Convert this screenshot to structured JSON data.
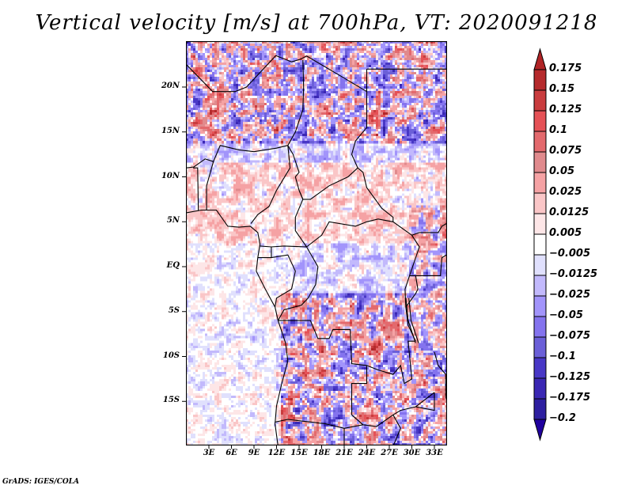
{
  "title": "Vertical velocity [m/s] at 700hPa, VT: 2020091218",
  "credit": "GrADS: IGES/COLA",
  "map": {
    "variable": "Vertical velocity",
    "units": "m/s",
    "level": "700hPa",
    "valid_time": "2020091218",
    "lon_range": [
      0,
      35
    ],
    "lat_range": [
      -20,
      25
    ],
    "y_ticks": [
      {
        "label": "20N",
        "lat": 20
      },
      {
        "label": "15N",
        "lat": 15
      },
      {
        "label": "10N",
        "lat": 10
      },
      {
        "label": "5N",
        "lat": 5
      },
      {
        "label": "EQ",
        "lat": 0
      },
      {
        "label": "5S",
        "lat": -5
      },
      {
        "label": "10S",
        "lat": -10
      },
      {
        "label": "15S",
        "lat": -15
      }
    ],
    "x_ticks": [
      {
        "label": "3E",
        "lon": 3
      },
      {
        "label": "6E",
        "lon": 6
      },
      {
        "label": "9E",
        "lon": 9
      },
      {
        "label": "12E",
        "lon": 12
      },
      {
        "label": "15E",
        "lon": 15
      },
      {
        "label": "18E",
        "lon": 18
      },
      {
        "label": "21E",
        "lon": 21
      },
      {
        "label": "24E",
        "lon": 24
      },
      {
        "label": "27E",
        "lon": 27
      },
      {
        "label": "30E",
        "lon": 30
      },
      {
        "label": "33E",
        "lon": 33
      }
    ]
  },
  "colorbar": {
    "levels": [
      "0.175",
      "0.15",
      "0.125",
      "0.1",
      "0.075",
      "0.05",
      "0.025",
      "0.0125",
      "0.005",
      "-0.005",
      "-0.0125",
      "-0.025",
      "-0.05",
      "-0.075",
      "-0.1",
      "-0.125",
      "-0.175",
      "-0.2"
    ],
    "colors": [
      "#b02426",
      "#b52a2c",
      "#c93c3e",
      "#e55156",
      "#e3696d",
      "#e08a8d",
      "#f5a2a4",
      "#fac6c7",
      "#fde6e7",
      "#ffffff",
      "#e0e0fd",
      "#c2b9fc",
      "#a294fb",
      "#8473ee",
      "#6b5fd8",
      "#4837c6",
      "#3a27b3",
      "#2e1fa0",
      "#20009e"
    ],
    "top_arrow_color": "#b02426",
    "bottom_arrow_color": "#20009e"
  }
}
